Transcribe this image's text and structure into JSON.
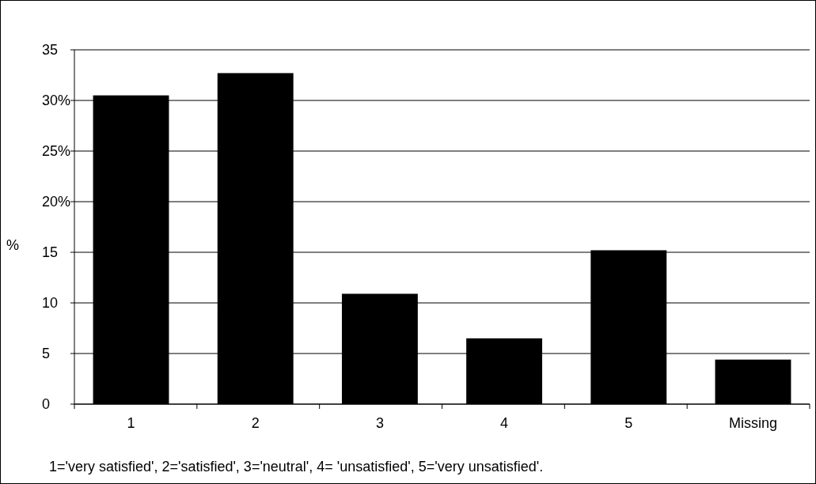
{
  "chart_data": {
    "type": "bar",
    "ylabel": "%",
    "categories": [
      "1",
      "2",
      "3",
      "4",
      "5",
      "Missing"
    ],
    "values": [
      30.5,
      32.7,
      10.9,
      6.5,
      15.2,
      4.4
    ],
    "color": "#000000",
    "ylim": [
      0,
      35
    ],
    "yticks": [
      0,
      5,
      10,
      15,
      {
        "value": 20,
        "label": "20%"
      },
      {
        "value": 25,
        "label": "25%"
      },
      {
        "value": 30,
        "label": "30%"
      },
      35
    ],
    "grid": "y",
    "annotations": [
      "1='very satisfied', 2='satisfied', 3='neutral', 4= 'unsatisfied', 5='very unsatisfied'."
    ]
  }
}
